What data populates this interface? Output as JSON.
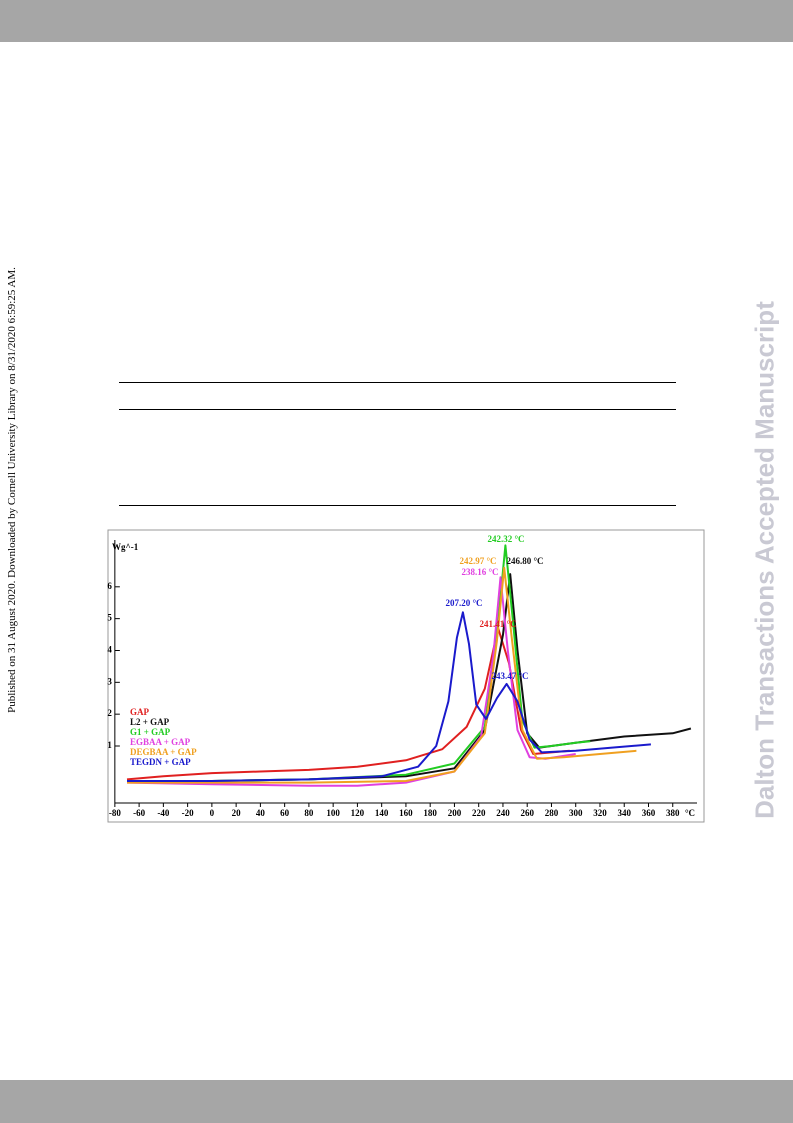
{
  "side_note": "Published on 31 August 2020. Downloaded by Cornell University Library on 8/31/2020 6:59:25 AM.",
  "watermark": "Dalton Transactions Accepted Manuscript",
  "chart_data": {
    "type": "line",
    "ylabel": "Wg^-1",
    "xlabel": "°C",
    "xlim": [
      -84,
      400
    ],
    "ylim": [
      -0.79,
      7.47
    ],
    "xticks": [
      -80,
      -60,
      -40,
      -20,
      0,
      20,
      40,
      60,
      80,
      100,
      120,
      140,
      160,
      180,
      200,
      220,
      240,
      260,
      280,
      300,
      320,
      340,
      360,
      380
    ],
    "yticks": [
      1,
      2,
      3,
      4,
      5,
      6
    ],
    "series": [
      {
        "name": "GAP",
        "color": "#e02020",
        "x": [
          -70,
          -40,
          0,
          40,
          80,
          120,
          160,
          190,
          210,
          225,
          236,
          245,
          255,
          265,
          280,
          295
        ],
        "values": [
          -0.05,
          0.05,
          0.15,
          0.2,
          0.25,
          0.35,
          0.55,
          0.9,
          1.6,
          2.8,
          4.7,
          3.6,
          1.5,
          0.75,
          0.8,
          0.85
        ]
      },
      {
        "name": "L2 + GAP",
        "color": "#111111",
        "x": [
          -70,
          0,
          80,
          160,
          200,
          225,
          240,
          246,
          252,
          260,
          270,
          300,
          340,
          380,
          395
        ],
        "values": [
          -0.1,
          -0.1,
          -0.05,
          0.05,
          0.3,
          1.5,
          4.5,
          6.4,
          4.0,
          1.4,
          0.95,
          1.1,
          1.3,
          1.4,
          1.55
        ]
      },
      {
        "name": "G1 + GAP",
        "color": "#22cc22",
        "x": [
          -70,
          0,
          80,
          160,
          200,
          225,
          235,
          242,
          248,
          256,
          266,
          280,
          300,
          312
        ],
        "values": [
          -0.1,
          -0.1,
          -0.05,
          0.1,
          0.45,
          1.6,
          4.5,
          7.3,
          5.0,
          1.8,
          0.95,
          1.0,
          1.1,
          1.15
        ]
      },
      {
        "name": "EGBAA + GAP",
        "color": "#e040e0",
        "x": [
          -70,
          0,
          80,
          120,
          160,
          200,
          222,
          232,
          238,
          244,
          252,
          262,
          275,
          300
        ],
        "values": [
          -0.15,
          -0.2,
          -0.25,
          -0.25,
          -0.15,
          0.2,
          1.3,
          3.8,
          6.3,
          4.0,
          1.5,
          0.65,
          0.6,
          0.75
        ]
      },
      {
        "name": "DEGBAA + GAP",
        "color": "#f0a020",
        "x": [
          -70,
          0,
          80,
          160,
          200,
          225,
          235,
          241,
          247,
          256,
          268,
          290,
          320,
          350
        ],
        "values": [
          -0.15,
          -0.15,
          -0.15,
          -0.1,
          0.2,
          1.4,
          4.3,
          6.6,
          4.5,
          1.5,
          0.6,
          0.65,
          0.75,
          0.85
        ]
      },
      {
        "name": "TEGDN + GAP",
        "color": "#1a1acc",
        "x": [
          -70,
          0,
          80,
          140,
          170,
          185,
          195,
          202,
          207,
          212,
          218,
          226,
          235,
          243,
          252,
          262,
          272,
          300,
          330,
          362
        ],
        "values": [
          -0.1,
          -0.1,
          -0.05,
          0.05,
          0.35,
          1.0,
          2.4,
          4.4,
          5.2,
          4.2,
          2.3,
          1.85,
          2.5,
          2.95,
          2.4,
          1.2,
          0.8,
          0.85,
          0.95,
          1.05
        ]
      }
    ],
    "annotations": [
      {
        "text": "242.32 °C",
        "color": "#22cc22"
      },
      {
        "text": "246.80 °C",
        "color": "#111111"
      },
      {
        "text": "242.97 °C",
        "color": "#f0a020"
      },
      {
        "text": "238.16 °C",
        "color": "#e040e0"
      },
      {
        "text": "207.20 °C",
        "color": "#1a1acc"
      },
      {
        "text": "241.41 °C",
        "color": "#e02020"
      },
      {
        "text": "243.47 °C",
        "color": "#1a1acc"
      }
    ]
  }
}
